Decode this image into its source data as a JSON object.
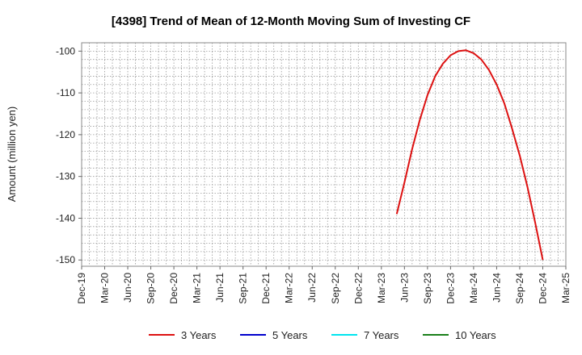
{
  "chart_data": {
    "type": "line",
    "title": "[4398]  Trend of Mean of 12-Month Moving Sum of Investing CF",
    "ylabel": "Amount (million yen)",
    "xlabel": "",
    "ylim": [
      -151.5,
      -98
    ],
    "yticks": [
      -100,
      -110,
      -120,
      -130,
      -140,
      -150
    ],
    "ytick_labels": [
      "-100",
      "-110",
      "-120",
      "-130",
      "-140",
      "-150"
    ],
    "xtick_labels": [
      "Dec-19",
      "Mar-20",
      "Jun-20",
      "Sep-20",
      "Dec-20",
      "Mar-21",
      "Jun-21",
      "Sep-21",
      "Dec-21",
      "Mar-22",
      "Jun-22",
      "Sep-22",
      "Dec-22",
      "Mar-23",
      "Jun-23",
      "Sep-23",
      "Dec-23",
      "Mar-24",
      "Jun-24",
      "Sep-24",
      "Dec-24",
      "Mar-25"
    ],
    "grid": true,
    "legend_position": "bottom",
    "series": [
      {
        "name": "3 Years",
        "color": "#dd1111",
        "x": [
          "2023-05",
          "2023-06",
          "2023-07",
          "2023-08",
          "2023-09",
          "2023-10",
          "2023-11",
          "2023-12",
          "2024-01",
          "2024-02",
          "2024-03",
          "2024-04",
          "2024-05",
          "2024-06",
          "2024-07",
          "2024-08",
          "2024-09",
          "2024-10",
          "2024-11",
          "2024-12"
        ],
        "values": [
          -139,
          -131.5,
          -123.5,
          -116.5,
          -110.5,
          -106,
          -103,
          -101,
          -100,
          -99.8,
          -100.5,
          -102,
          -104.5,
          -108,
          -112.5,
          -118.5,
          -125,
          -132.5,
          -141,
          -150
        ]
      },
      {
        "name": "5 Years",
        "color": "#0000cc",
        "x": [],
        "values": []
      },
      {
        "name": "7 Years",
        "color": "#00e5ee",
        "x": [],
        "values": []
      },
      {
        "name": "10 Years",
        "color": "#1a7f1a",
        "x": [],
        "values": []
      }
    ]
  }
}
